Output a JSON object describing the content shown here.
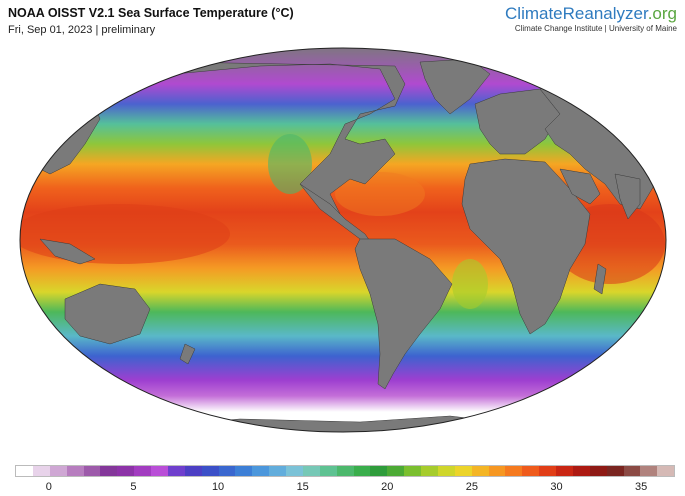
{
  "header": {
    "title": "NOAA OISST V2.1 Sea Surface Temperature (°C)",
    "subtitle": "Fri, Sep 01, 2023 | preliminary"
  },
  "brand": {
    "name_part1": "ClimateReanalyzer",
    "name_part2": ".org",
    "tagline": "Climate Change Institute | University of Maine"
  },
  "colorbar": {
    "min": -2,
    "max": 37,
    "tick_labels": [
      "0",
      "5",
      "10",
      "15",
      "20",
      "25",
      "30",
      "35"
    ],
    "colors": [
      "#ffffff",
      "#e8d3ea",
      "#cfa7d4",
      "#b77dbf",
      "#9d5aaa",
      "#84379a",
      "#8d33a8",
      "#a23cc0",
      "#b94ed7",
      "#6f3fcd",
      "#4c3fc4",
      "#3b50c8",
      "#3a67cf",
      "#3d7fd6",
      "#4c97dc",
      "#62addc",
      "#7bc2d7",
      "#76c8b6",
      "#5ec292",
      "#4cb86c",
      "#3aae4c",
      "#2f9c3b",
      "#4caa35",
      "#7bbf2f",
      "#a6cc2c",
      "#cfd62b",
      "#ecd42a",
      "#f4b525",
      "#f69722",
      "#f57a1f",
      "#ef5b1c",
      "#e13e17",
      "#c92613",
      "#ad1a12",
      "#8e1a15",
      "#7a2520",
      "#8b4a44",
      "#b0827d",
      "#d5b9b5"
    ]
  },
  "map": {
    "land_color": "#7a7a7a",
    "sea_ice_color": "#ffffff",
    "projection_note_hidden": ""
  }
}
